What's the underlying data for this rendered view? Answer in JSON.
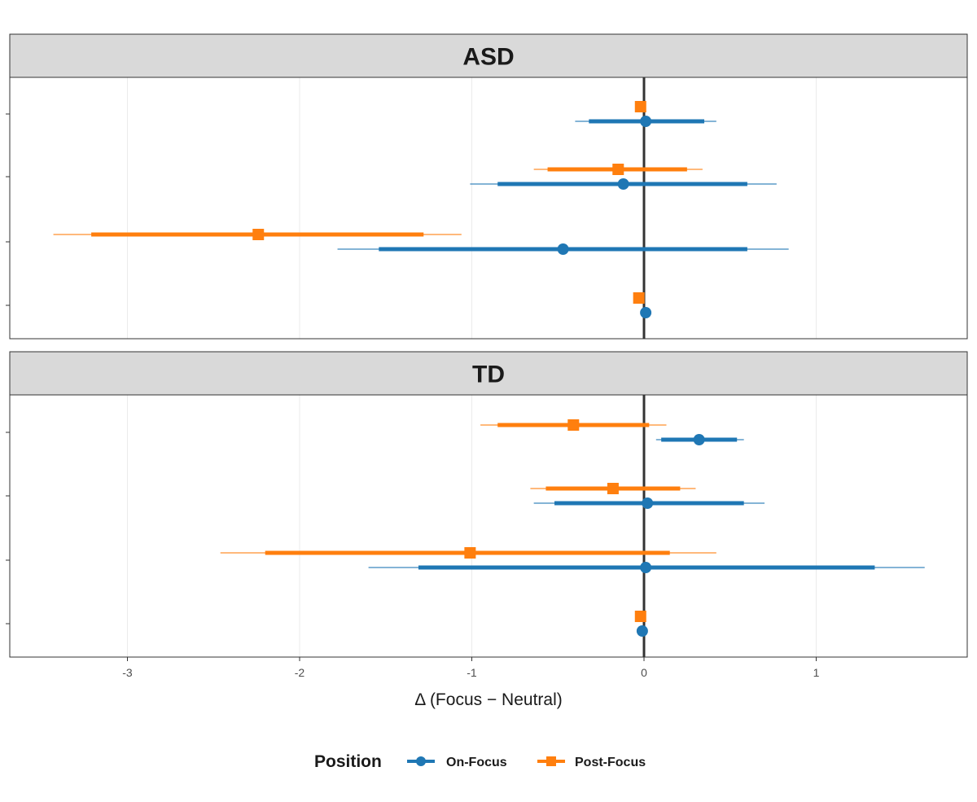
{
  "chart_data": {
    "type": "scatter",
    "subtype": "forest-plot (point + inner/outer interval)",
    "xlabel": "Δ (Focus − Neutral)",
    "ylabel": "",
    "xlim": [
      -3.6,
      1.85
    ],
    "x_ticks": [
      -3,
      -2,
      -1,
      0,
      1
    ],
    "x_tick_labels": [
      "-3",
      "-2",
      "-1",
      "0",
      "1"
    ],
    "reference_line_x": 0,
    "grid": "vertical major gridlines",
    "legend": {
      "title": "Position",
      "placement": "bottom",
      "entries": [
        {
          "label": "On-Focus",
          "color": "#1f77b4",
          "marker": "circle"
        },
        {
          "label": "Post-Focus",
          "color": "#ff7f0e",
          "marker": "square"
        }
      ]
    },
    "colors": {
      "On-Focus": "#1f77b4",
      "Post-Focus": "#ff7f0e",
      "strip": "#d9d9d9",
      "zero_line": "#333333"
    },
    "y_levels": 4,
    "panels": [
      {
        "title": "ASD",
        "series": [
          {
            "name": "On-Focus",
            "points": [
              {
                "level": 1,
                "estimate": 0.01,
                "inner": [
                  -0.32,
                  0.35
                ],
                "outer": [
                  -0.4,
                  0.42
                ]
              },
              {
                "level": 2,
                "estimate": -0.12,
                "inner": [
                  -0.85,
                  0.6
                ],
                "outer": [
                  -1.01,
                  0.77
                ]
              },
              {
                "level": 3,
                "estimate": -0.47,
                "inner": [
                  -1.54,
                  0.6
                ],
                "outer": [
                  -1.78,
                  0.84
                ]
              },
              {
                "level": 4,
                "estimate": 0.01,
                "inner": [
                  0.01,
                  0.01
                ],
                "outer": [
                  0.01,
                  0.01
                ]
              }
            ]
          },
          {
            "name": "Post-Focus",
            "points": [
              {
                "level": 1,
                "estimate": -0.02,
                "inner": [
                  -0.02,
                  -0.02
                ],
                "outer": [
                  -0.02,
                  -0.02
                ]
              },
              {
                "level": 2,
                "estimate": -0.15,
                "inner": [
                  -0.56,
                  0.25
                ],
                "outer": [
                  -0.64,
                  0.34
                ]
              },
              {
                "level": 3,
                "estimate": -2.24,
                "inner": [
                  -3.21,
                  -1.28
                ],
                "outer": [
                  -3.43,
                  -1.06
                ]
              },
              {
                "level": 4,
                "estimate": -0.03,
                "inner": [
                  -0.03,
                  -0.03
                ],
                "outer": [
                  -0.03,
                  -0.03
                ]
              }
            ]
          }
        ]
      },
      {
        "title": "TD",
        "series": [
          {
            "name": "On-Focus",
            "points": [
              {
                "level": 1,
                "estimate": 0.32,
                "inner": [
                  0.1,
                  0.54
                ],
                "outer": [
                  0.07,
                  0.58
                ]
              },
              {
                "level": 2,
                "estimate": 0.02,
                "inner": [
                  -0.52,
                  0.58
                ],
                "outer": [
                  -0.64,
                  0.7
                ]
              },
              {
                "level": 3,
                "estimate": 0.01,
                "inner": [
                  -1.31,
                  1.34
                ],
                "outer": [
                  -1.6,
                  1.63
                ]
              },
              {
                "level": 4,
                "estimate": -0.01,
                "inner": [
                  -0.01,
                  -0.01
                ],
                "outer": [
                  -0.01,
                  -0.01
                ]
              }
            ]
          },
          {
            "name": "Post-Focus",
            "points": [
              {
                "level": 1,
                "estimate": -0.41,
                "inner": [
                  -0.85,
                  0.03
                ],
                "outer": [
                  -0.95,
                  0.13
                ]
              },
              {
                "level": 2,
                "estimate": -0.18,
                "inner": [
                  -0.57,
                  0.21
                ],
                "outer": [
                  -0.66,
                  0.3
                ]
              },
              {
                "level": 3,
                "estimate": -1.01,
                "inner": [
                  -2.2,
                  0.15
                ],
                "outer": [
                  -2.46,
                  0.42
                ]
              },
              {
                "level": 4,
                "estimate": -0.02,
                "inner": [
                  -0.02,
                  -0.02
                ],
                "outer": [
                  -0.02,
                  -0.02
                ]
              }
            ]
          }
        ]
      }
    ]
  }
}
